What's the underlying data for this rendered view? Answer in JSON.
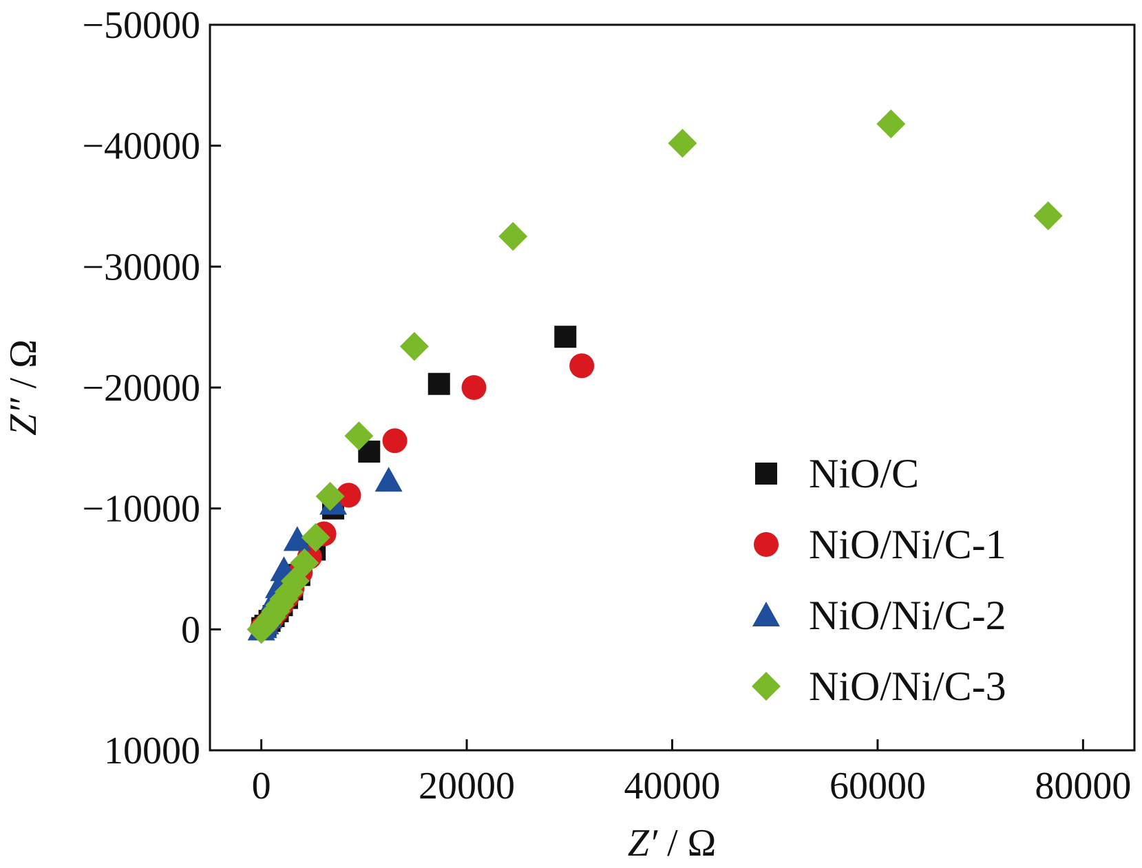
{
  "chart_data": {
    "type": "scatter",
    "title": "",
    "xlabel_italic": "Z′",
    "xlabel_unit": " / Ω",
    "ylabel_italic": "Z″",
    "ylabel_unit": " / Ω",
    "xlim": [
      -5000,
      85000
    ],
    "ylim": [
      10000,
      -50000
    ],
    "y_axis_inverted": true,
    "xticks": [
      0,
      20000,
      40000,
      60000,
      80000
    ],
    "xtick_labels": [
      "0",
      "20000",
      "40000",
      "60000",
      "80000"
    ],
    "yticks": [
      -50000,
      -40000,
      -30000,
      -20000,
      -10000,
      0,
      10000
    ],
    "ytick_labels": [
      "−50000",
      "−40000",
      "−30000",
      "−20000",
      "−10000",
      "0",
      "10000"
    ],
    "grid": false,
    "legend_position": "right-middle",
    "series": [
      {
        "name": "NiO/C",
        "marker": "square",
        "color": "#111111",
        "points": [
          [
            100,
            -100
          ],
          [
            400,
            -300
          ],
          [
            800,
            -700
          ],
          [
            1200,
            -1100
          ],
          [
            1600,
            -1500
          ],
          [
            2000,
            -2000
          ],
          [
            2500,
            -2600
          ],
          [
            3000,
            -3300
          ],
          [
            3700,
            -4500
          ],
          [
            5200,
            -6600
          ],
          [
            7000,
            -10000
          ],
          [
            10500,
            -14700
          ],
          [
            17300,
            -20300
          ],
          [
            29600,
            -24200
          ]
        ]
      },
      {
        "name": "NiO/Ni/C-1",
        "marker": "circle",
        "color": "#d9181f",
        "points": [
          [
            100,
            -100
          ],
          [
            500,
            -400
          ],
          [
            1000,
            -900
          ],
          [
            1500,
            -1500
          ],
          [
            2000,
            -2100
          ],
          [
            2500,
            -2700
          ],
          [
            3000,
            -3400
          ],
          [
            3800,
            -4700
          ],
          [
            4700,
            -6000
          ],
          [
            6100,
            -7900
          ],
          [
            8500,
            -11100
          ],
          [
            13000,
            -15600
          ],
          [
            20700,
            -20000
          ],
          [
            31200,
            -21800
          ]
        ]
      },
      {
        "name": "NiO/Ni/C-2",
        "marker": "triangle",
        "color": "#1f4e9c",
        "points": [
          [
            0,
            0
          ],
          [
            200,
            -200
          ],
          [
            400,
            -500
          ],
          [
            700,
            -1000
          ],
          [
            1000,
            -1700
          ],
          [
            1300,
            -2500
          ],
          [
            1700,
            -3500
          ],
          [
            2200,
            -4900
          ],
          [
            3500,
            -7400
          ],
          [
            7000,
            -10400
          ],
          [
            12400,
            -12300
          ]
        ]
      },
      {
        "name": "NiO/Ni/C-3",
        "marker": "diamond",
        "color": "#7ab929",
        "points": [
          [
            0,
            0
          ],
          [
            300,
            -300
          ],
          [
            600,
            -600
          ],
          [
            1000,
            -1000
          ],
          [
            1400,
            -1500
          ],
          [
            1800,
            -2000
          ],
          [
            2200,
            -2500
          ],
          [
            2700,
            -3100
          ],
          [
            3300,
            -4000
          ],
          [
            4200,
            -5500
          ],
          [
            5300,
            -7600
          ],
          [
            6700,
            -11000
          ],
          [
            9500,
            -16000
          ],
          [
            14900,
            -23400
          ],
          [
            24500,
            -32500
          ],
          [
            41000,
            -40200
          ],
          [
            61300,
            -41800
          ],
          [
            76600,
            -34200
          ]
        ]
      }
    ]
  }
}
